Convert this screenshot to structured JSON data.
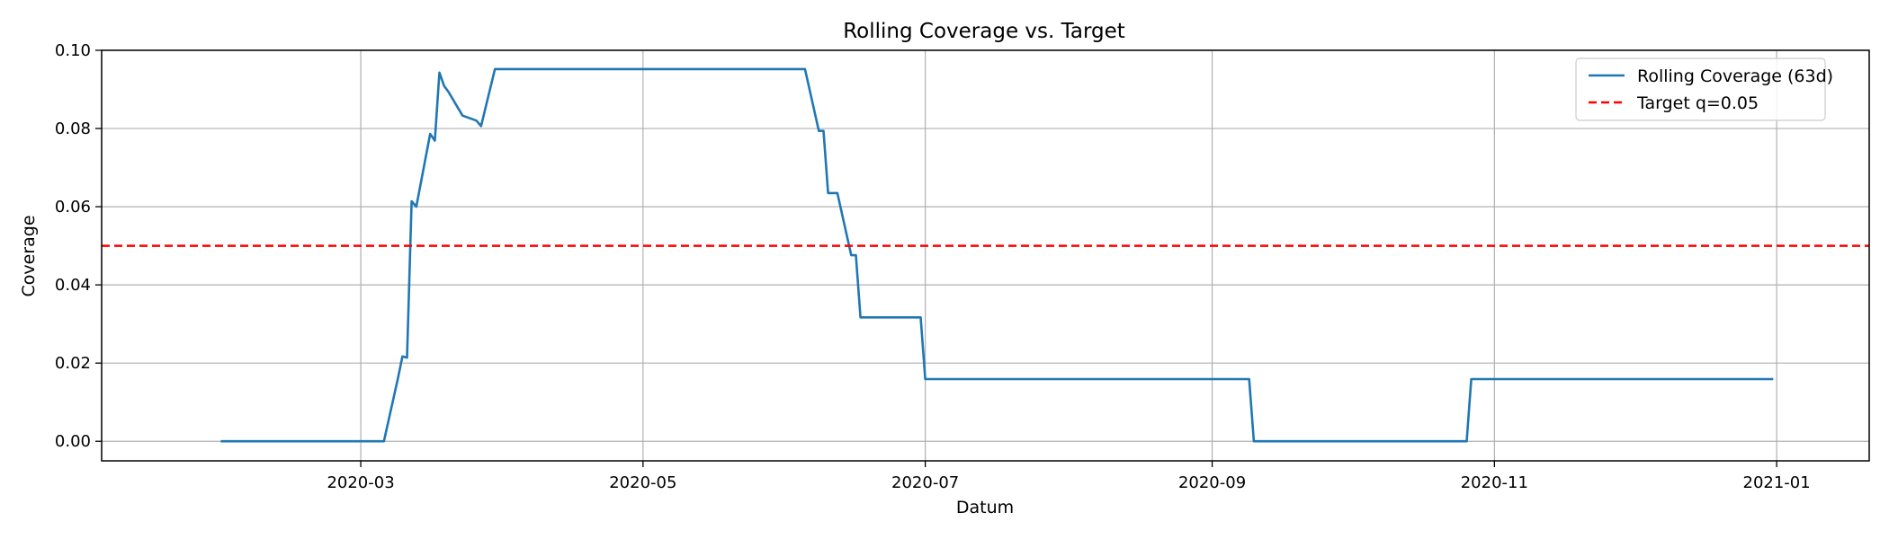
{
  "chart_data": {
    "type": "line",
    "title": "Rolling Coverage vs. Target",
    "xlabel": "Datum",
    "ylabel": "Coverage",
    "xlim": [
      "2020-01-05",
      "2021-01-21"
    ],
    "ylim": [
      -0.005,
      0.1
    ],
    "x_ticks": [
      "2020-03-01",
      "2020-05-01",
      "2020-07-01",
      "2020-09-01",
      "2020-11-01",
      "2021-01-01"
    ],
    "x_tick_labels": [
      "2020-03",
      "2020-05",
      "2020-07",
      "2020-09",
      "2020-11",
      "2021-01"
    ],
    "y_ticks": [
      0.0,
      0.02,
      0.04,
      0.06,
      0.08,
      0.1
    ],
    "y_tick_labels": [
      "0.00",
      "0.02",
      "0.04",
      "0.06",
      "0.08",
      "0.10"
    ],
    "grid": true,
    "legend": "top-right",
    "series": [
      {
        "name": "Rolling Coverage (63d)",
        "color": "#1f77b4",
        "style": "solid",
        "x": [
          "2020-01-31",
          "2020-03-06",
          "2020-03-09",
          "2020-03-10",
          "2020-03-11",
          "2020-03-12",
          "2020-03-13",
          "2020-03-16",
          "2020-03-17",
          "2020-03-18",
          "2020-03-19",
          "2020-03-20",
          "2020-03-23",
          "2020-03-26",
          "2020-03-27",
          "2020-03-30",
          "2020-03-31",
          "2020-04-01",
          "2020-06-05",
          "2020-06-08",
          "2020-06-09",
          "2020-06-10",
          "2020-06-12",
          "2020-06-15",
          "2020-06-16",
          "2020-06-17",
          "2020-06-30",
          "2020-07-01",
          "2020-09-09",
          "2020-09-10",
          "2020-10-26",
          "2020-10-27",
          "2020-12-31"
        ],
        "values": [
          0.0,
          0.0,
          0.0159,
          0.0217,
          0.0214,
          0.0614,
          0.06,
          0.0786,
          0.0769,
          0.0943,
          0.0909,
          0.0893,
          0.0833,
          0.082,
          0.0806,
          0.0952,
          0.0952,
          0.0952,
          0.0952,
          0.0794,
          0.0794,
          0.0635,
          0.0635,
          0.0476,
          0.0476,
          0.0317,
          0.0317,
          0.0159,
          0.0159,
          0.0,
          0.0,
          0.0159,
          0.0159
        ]
      },
      {
        "name": "Target q=0.05",
        "color": "#ff0000",
        "style": "dashed",
        "constant": 0.05
      }
    ]
  }
}
